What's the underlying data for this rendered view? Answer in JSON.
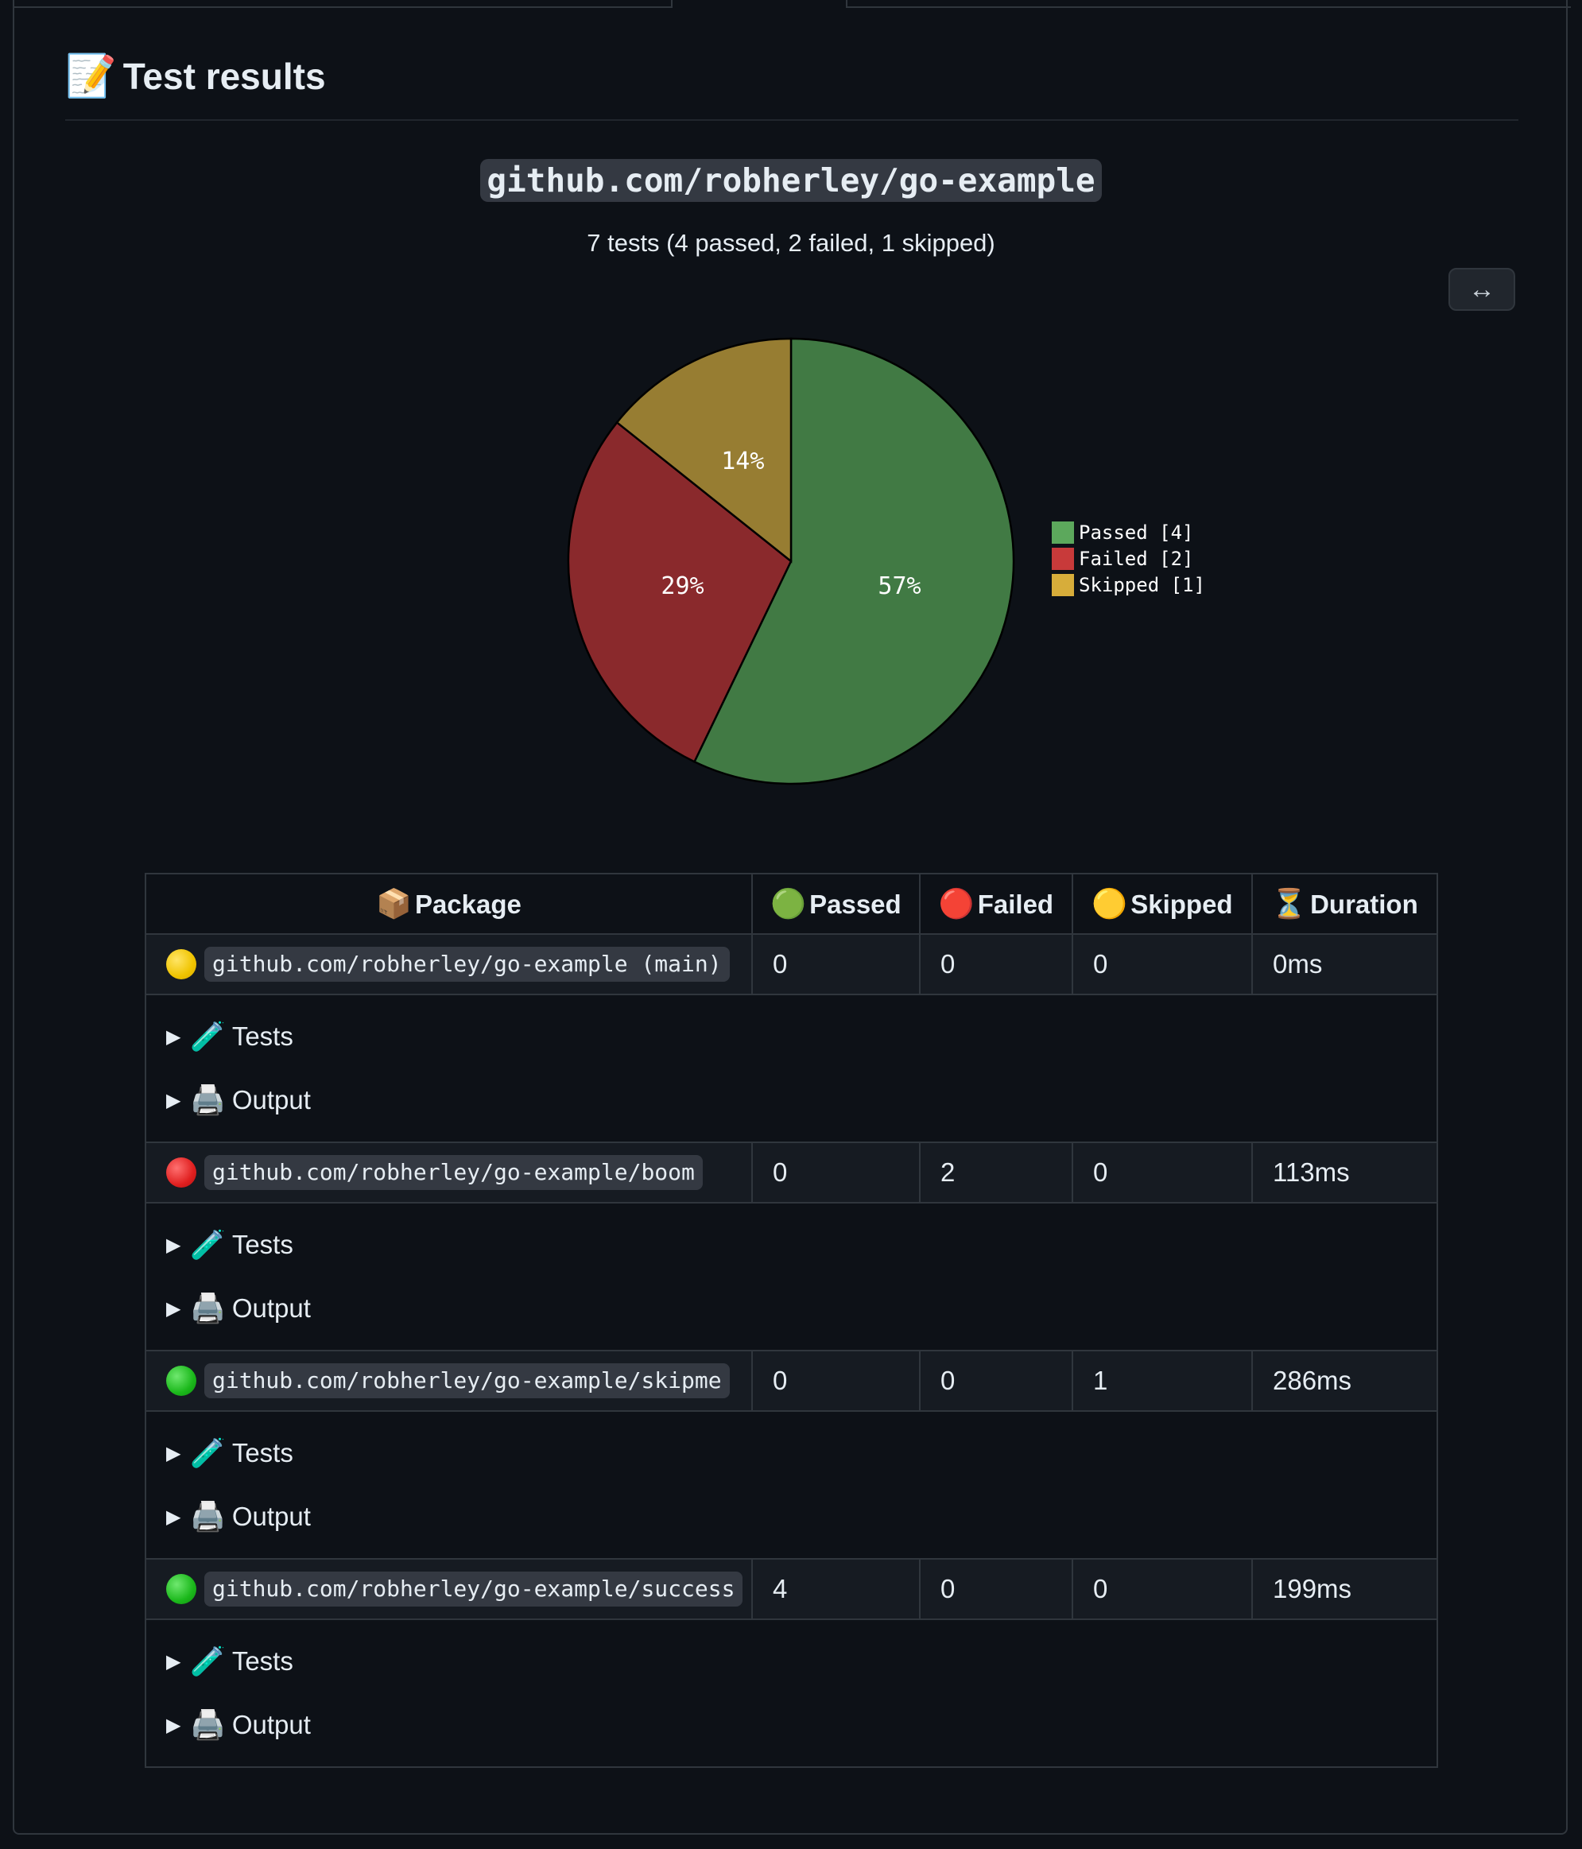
{
  "header": {
    "title_icon": "📝",
    "title": "Test results"
  },
  "report": {
    "package_title": "github.com/robherley/go-example",
    "summary": "7 tests (4 passed, 2 failed, 1 skipped)",
    "expand_icon": "↔"
  },
  "chart_data": {
    "type": "pie",
    "slices": [
      {
        "label": "Passed [4]",
        "value": 4,
        "percent_label": "57%",
        "color": "#417a44",
        "legend_color": "#5ca85c"
      },
      {
        "label": "Failed [2]",
        "value": 2,
        "percent_label": "29%",
        "color": "#8a292c",
        "legend_color": "#c83a3a"
      },
      {
        "label": "Skipped [1]",
        "value": 1,
        "percent_label": "14%",
        "color": "#977d32",
        "legend_color": "#d7ad3a"
      }
    ],
    "legend_position": "right"
  },
  "table": {
    "headers": [
      {
        "icon": "📦",
        "label": "Package"
      },
      {
        "icon": "🟢",
        "label": "Passed"
      },
      {
        "icon": "🔴",
        "label": "Failed"
      },
      {
        "icon": "🟡",
        "label": "Skipped"
      },
      {
        "icon": "⏳",
        "label": "Duration"
      }
    ],
    "rows": [
      {
        "status": "yellow",
        "package": "github.com/robherley/go-example (main)",
        "passed": "0",
        "failed": "0",
        "skipped": "0",
        "duration": "0ms"
      },
      {
        "status": "red",
        "package": "github.com/robherley/go-example/boom",
        "passed": "0",
        "failed": "2",
        "skipped": "0",
        "duration": "113ms"
      },
      {
        "status": "green",
        "package": "github.com/robherley/go-example/skipme",
        "passed": "0",
        "failed": "0",
        "skipped": "1",
        "duration": "286ms"
      },
      {
        "status": "green",
        "package": "github.com/robherley/go-example/success",
        "passed": "4",
        "failed": "0",
        "skipped": "0",
        "duration": "199ms"
      }
    ],
    "details": {
      "toggle_glyph": "▶",
      "tests_icon": "🧪",
      "tests_label": "Tests",
      "output_icon": "🖨️",
      "output_label": "Output"
    }
  }
}
